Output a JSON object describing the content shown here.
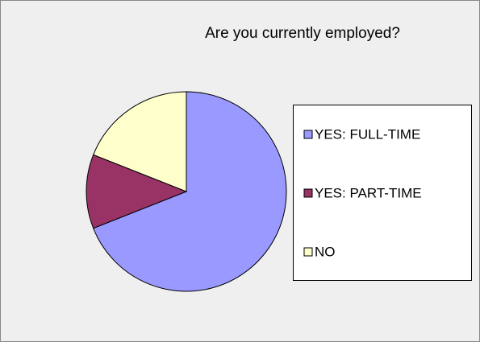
{
  "chart_data": {
    "type": "pie",
    "title": "Are you currently employed?",
    "categories": [
      "YES: FULL-TIME",
      "YES: PART-TIME",
      "NO"
    ],
    "values": [
      69,
      12,
      19
    ],
    "colors": [
      "#9999ff",
      "#993366",
      "#ffffcc"
    ]
  }
}
